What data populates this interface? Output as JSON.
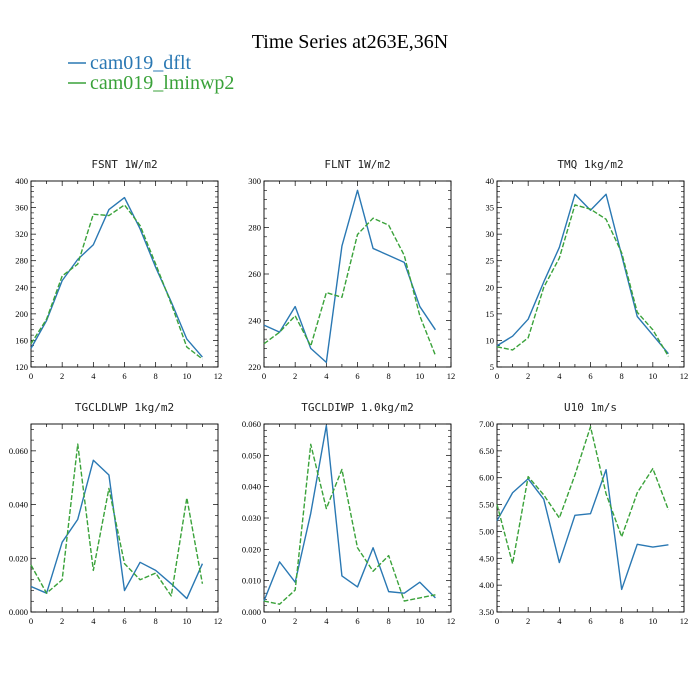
{
  "figure": {
    "title": "Time Series at263E,36N",
    "legend": [
      {
        "name": "cam019_dflt",
        "color": "#2a78b3"
      },
      {
        "name": "cam019_lminwp2",
        "color": "#3aa23a"
      }
    ]
  },
  "chart_data": [
    {
      "type": "line",
      "title": "FSNT   1W/m2",
      "x": [
        0,
        1,
        2,
        3,
        4,
        5,
        6,
        7,
        8,
        9,
        10,
        11
      ],
      "xlim": [
        0,
        12
      ],
      "xticks": [
        "0",
        "2",
        "4",
        "6",
        "8",
        "10",
        "12"
      ],
      "ylim": [
        120,
        400
      ],
      "yticks": [
        "120",
        "160",
        "200",
        "240",
        "280",
        "320",
        "360",
        "400"
      ],
      "series": [
        {
          "name": "cam019_dflt",
          "color": "#2a78b3",
          "dashed": false,
          "values": [
            148,
            190,
            250,
            282,
            304,
            357,
            375,
            328,
            270,
            218,
            162,
            135
          ]
        },
        {
          "name": "cam019_lminwp2",
          "color": "#3aa23a",
          "dashed": true,
          "values": [
            155,
            192,
            257,
            275,
            350,
            348,
            364,
            333,
            275,
            215,
            150,
            132
          ]
        }
      ]
    },
    {
      "type": "line",
      "title": "FLNT   1W/m2",
      "x": [
        0,
        1,
        2,
        3,
        4,
        5,
        6,
        7,
        8,
        9,
        10,
        11
      ],
      "xlim": [
        0,
        12
      ],
      "xticks": [
        "0",
        "2",
        "4",
        "6",
        "8",
        "10",
        "12"
      ],
      "ylim": [
        220,
        300
      ],
      "yticks": [
        "220",
        "240",
        "260",
        "280",
        "300"
      ],
      "series": [
        {
          "name": "cam019_dflt",
          "color": "#2a78b3",
          "dashed": false,
          "values": [
            238,
            235,
            246,
            228,
            222,
            272,
            296,
            271,
            268,
            265,
            246,
            236
          ]
        },
        {
          "name": "cam019_lminwp2",
          "color": "#3aa23a",
          "dashed": true,
          "values": [
            230,
            235,
            242,
            229,
            252,
            250,
            277,
            284,
            281,
            268,
            242,
            225
          ]
        }
      ]
    },
    {
      "type": "line",
      "title": "TMQ   1kg/m2",
      "x": [
        0,
        1,
        2,
        3,
        4,
        5,
        6,
        7,
        8,
        9,
        10,
        11
      ],
      "xlim": [
        0,
        12
      ],
      "xticks": [
        "0",
        "2",
        "4",
        "6",
        "8",
        "10",
        "12"
      ],
      "ylim": [
        5,
        40
      ],
      "yticks": [
        "5",
        "10",
        "15",
        "20",
        "25",
        "30",
        "35",
        "40"
      ],
      "series": [
        {
          "name": "cam019_dflt",
          "color": "#2a78b3",
          "dashed": false,
          "values": [
            9,
            10.8,
            14,
            21,
            27.5,
            37.5,
            34.5,
            37.5,
            26,
            14.5,
            11,
            7.5
          ]
        },
        {
          "name": "cam019_lminwp2",
          "color": "#3aa23a",
          "dashed": true,
          "values": [
            8.8,
            8.2,
            10.5,
            20,
            25.5,
            35.5,
            34.7,
            32.8,
            26.5,
            15.3,
            12,
            7
          ]
        }
      ]
    },
    {
      "type": "line",
      "title": "TGCLDLWP   1kg/m2",
      "x": [
        0,
        1,
        2,
        3,
        4,
        5,
        6,
        7,
        8,
        9,
        10,
        11
      ],
      "xlim": [
        0,
        12
      ],
      "xticks": [
        "0",
        "2",
        "4",
        "6",
        "8",
        "10",
        "12"
      ],
      "ylim": [
        0,
        0.07
      ],
      "yticks": [
        "0.000",
        "0.020",
        "0.040",
        "0.060"
      ],
      "yticks_values": [
        0,
        0.02,
        0.04,
        0.06
      ],
      "series": [
        {
          "name": "cam019_dflt",
          "color": "#2a78b3",
          "dashed": false,
          "values": [
            0.0095,
            0.007,
            0.026,
            0.0345,
            0.0565,
            0.051,
            0.008,
            0.0185,
            0.0155,
            0.0105,
            0.005,
            0.018
          ]
        },
        {
          "name": "cam019_lminwp2",
          "color": "#3aa23a",
          "dashed": true,
          "values": [
            0.0175,
            0.007,
            0.012,
            0.0625,
            0.0155,
            0.046,
            0.018,
            0.012,
            0.0145,
            0.006,
            0.0425,
            0.0105
          ]
        }
      ]
    },
    {
      "type": "line",
      "title": "TGCLDIWP   1.0kg/m2",
      "x": [
        0,
        1,
        2,
        3,
        4,
        5,
        6,
        7,
        8,
        9,
        10,
        11
      ],
      "xlim": [
        0,
        12
      ],
      "xticks": [
        "0",
        "2",
        "4",
        "6",
        "8",
        "10",
        "12"
      ],
      "ylim": [
        0,
        0.06
      ],
      "yticks": [
        "0.000",
        "0.010",
        "0.020",
        "0.030",
        "0.040",
        "0.050",
        "0.060"
      ],
      "yticks_values": [
        0,
        0.01,
        0.02,
        0.03,
        0.04,
        0.05,
        0.06
      ],
      "series": [
        {
          "name": "cam019_dflt",
          "color": "#2a78b3",
          "dashed": false,
          "values": [
            0.0035,
            0.016,
            0.0095,
            0.0315,
            0.0595,
            0.0115,
            0.008,
            0.0205,
            0.0065,
            0.006,
            0.0095,
            0.0045
          ]
        },
        {
          "name": "cam019_lminwp2",
          "color": "#3aa23a",
          "dashed": true,
          "values": [
            0.0035,
            0.0025,
            0.007,
            0.0535,
            0.033,
            0.0455,
            0.0205,
            0.013,
            0.018,
            0.0035,
            0.0045,
            0.0055
          ]
        }
      ]
    },
    {
      "type": "line",
      "title": "U10   1m/s",
      "x": [
        0,
        1,
        2,
        3,
        4,
        5,
        6,
        7,
        8,
        9,
        10,
        11
      ],
      "xlim": [
        0,
        12
      ],
      "xticks": [
        "0",
        "2",
        "4",
        "6",
        "8",
        "10",
        "12"
      ],
      "ylim": [
        3.5,
        7.0
      ],
      "yticks": [
        "3.50",
        "4.00",
        "4.50",
        "5.00",
        "5.50",
        "6.00",
        "6.50",
        "7.00"
      ],
      "yticks_values": [
        3.5,
        4.0,
        4.5,
        5.0,
        5.5,
        6.0,
        6.5,
        7.0
      ],
      "series": [
        {
          "name": "cam019_dflt",
          "color": "#2a78b3",
          "dashed": false,
          "values": [
            5.2,
            5.72,
            5.98,
            5.6,
            4.42,
            5.3,
            5.33,
            6.15,
            3.92,
            4.76,
            4.71,
            4.75
          ]
        },
        {
          "name": "cam019_lminwp2",
          "color": "#3aa23a",
          "dashed": true,
          "values": [
            5.5,
            4.4,
            6.02,
            5.68,
            5.25,
            6.05,
            6.95,
            5.7,
            4.9,
            5.72,
            6.17,
            5.4
          ]
        }
      ]
    }
  ]
}
